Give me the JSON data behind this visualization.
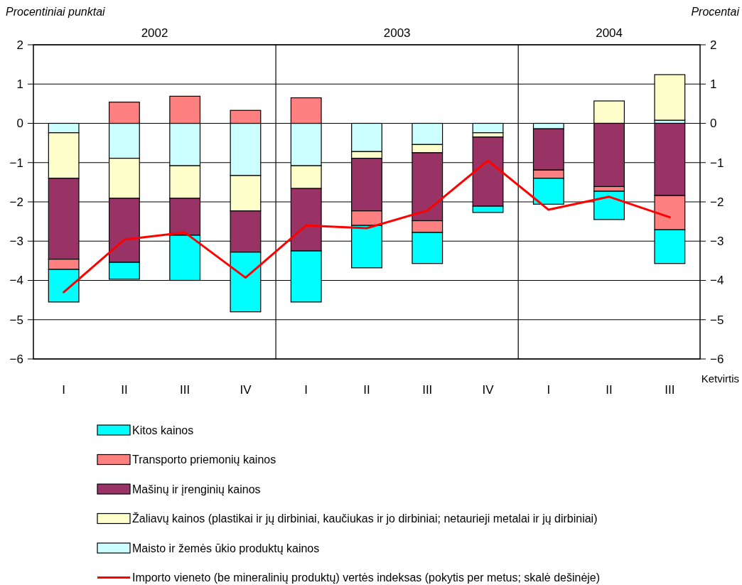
{
  "chart_data": {
    "type": "bar",
    "stacked": true,
    "ylabel": "Procentiniai punktai",
    "y2label": "Procentai",
    "xlabel": "Ketvirtis",
    "categories": [
      "I",
      "II",
      "III",
      "IV",
      "I",
      "II",
      "III",
      "IV",
      "I",
      "II",
      "III"
    ],
    "annotations": [
      "2002",
      "2003",
      "2004"
    ],
    "ylim": [
      -6,
      2
    ],
    "y2lim": [
      -6,
      2
    ],
    "yticks": [
      2,
      1,
      0,
      {
        "value": -1,
        "label": "−1"
      },
      {
        "value": -2,
        "label": "−2"
      },
      {
        "value": -3,
        "label": "−3"
      },
      {
        "value": -4,
        "label": "−4"
      },
      {
        "value": -5,
        "label": "−5"
      },
      {
        "value": -6,
        "label": "−6"
      }
    ],
    "y2ticks": [
      2,
      1,
      0,
      {
        "value": -1,
        "label": "−1"
      },
      {
        "value": -2,
        "label": "−2"
      },
      {
        "value": -3,
        "label": "−3"
      },
      {
        "value": -4,
        "label": "−4"
      },
      {
        "value": -5,
        "label": "−5"
      },
      {
        "value": -6,
        "label": "−6"
      }
    ],
    "grid": "y",
    "legend": "bottom",
    "series": [
      {
        "name": "Maisto ir žemės ūkio produktų kainos",
        "color": "#ccffff",
        "values": [
          -0.24,
          -0.89,
          -1.08,
          -1.33,
          -1.08,
          -0.72,
          -0.54,
          -0.24,
          -0.14,
          null,
          0.08
        ]
      },
      {
        "name": "Žaliavų kainos (plastikai ir jų dirbiniai, kaučiukas ir jo dirbiniai; netaurieji metalai ir jų dirbiniai)",
        "color": "#ffffcc",
        "values": [
          -1.16,
          -1.02,
          -0.83,
          -0.9,
          -0.58,
          -0.17,
          -0.21,
          -0.11,
          null,
          0.57,
          1.16
        ]
      },
      {
        "name": "Mašinų ir įrenginių kainos",
        "color": "#993366",
        "values": [
          -2.06,
          -1.63,
          -0.94,
          -1.05,
          -1.59,
          -1.34,
          -1.73,
          -1.76,
          -1.05,
          -1.61,
          -1.84
        ]
      },
      {
        "name": "Transporto priemonių kainos",
        "color": "#ff8080",
        "values": [
          -0.26,
          0.54,
          0.69,
          0.33,
          0.65,
          -0.37,
          -0.3,
          null,
          -0.21,
          -0.12,
          -0.87
        ]
      },
      {
        "name": "Kitos kainos",
        "color": "#00ffff",
        "values": [
          -0.83,
          -0.43,
          -1.15,
          -1.52,
          -1.3,
          -1.08,
          -0.79,
          -0.16,
          -0.66,
          -0.72,
          -0.86
        ]
      },
      {
        "name": "Importo vieneto (be mineralinių produktų) vertės indeksas (pokytis per metus; skalė dešinėje)",
        "type": "line",
        "axis": "y2",
        "color": "#ff0000",
        "marker": "none",
        "values": [
          -4.3,
          -2.96,
          -2.78,
          -3.93,
          -2.6,
          -2.67,
          -2.22,
          -0.95,
          -2.2,
          -1.87,
          -2.39
        ]
      }
    ]
  }
}
